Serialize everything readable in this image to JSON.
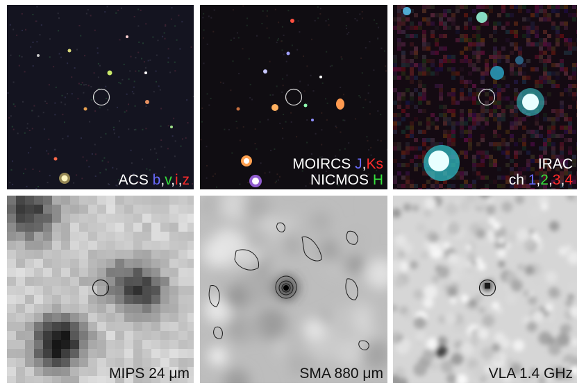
{
  "panels": [
    {
      "lines": [
        [
          {
            "t": "ACS ",
            "c": "w"
          },
          {
            "t": "b",
            "c": "b"
          },
          {
            "t": ",",
            "c": "w"
          },
          {
            "t": "v",
            "c": "g"
          },
          {
            "t": ",",
            "c": "w"
          },
          {
            "t": "i",
            "c": "r"
          },
          {
            "t": ",",
            "c": "w"
          },
          {
            "t": "z",
            "c": "r"
          }
        ]
      ]
    },
    {
      "lines": [
        [
          {
            "t": "MOIRCS ",
            "c": "w"
          },
          {
            "t": "J",
            "c": "b"
          },
          {
            "t": ",",
            "c": "w"
          },
          {
            "t": "Ks",
            "c": "r"
          }
        ],
        [
          {
            "t": "NICMOS ",
            "c": "w"
          },
          {
            "t": "H",
            "c": "g"
          }
        ]
      ]
    },
    {
      "lines": [
        [
          {
            "t": "IRAC",
            "c": "w"
          }
        ],
        [
          {
            "t": "ch ",
            "c": "w"
          },
          {
            "t": "1",
            "c": "b"
          },
          {
            "t": ",",
            "c": "w"
          },
          {
            "t": "2",
            "c": "g"
          },
          {
            "t": ",",
            "c": "w"
          },
          {
            "t": "3",
            "c": "r"
          },
          {
            "t": ",",
            "c": "w"
          },
          {
            "t": "4",
            "c": "r"
          }
        ]
      ]
    },
    {
      "text": "MIPS 24 μm"
    },
    {
      "text": "SMA 880 μm"
    },
    {
      "text": "VLA 1.4 GHz"
    }
  ]
}
